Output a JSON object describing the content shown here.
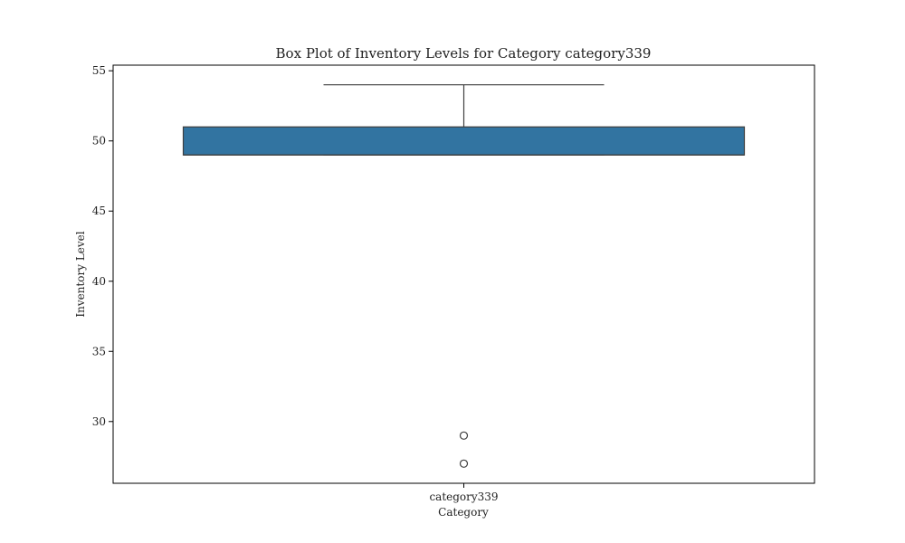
{
  "chart_data": {
    "type": "box",
    "title": "Box Plot of Inventory Levels for Category category339",
    "xlabel": "Category",
    "ylabel": "Inventory Level",
    "categories": [
      "category339"
    ],
    "boxes": [
      {
        "category": "category339",
        "whisker_low": 49,
        "q1": 49,
        "median": 49,
        "q3": 51,
        "whisker_high": 54,
        "outliers": [
          29,
          27
        ]
      }
    ],
    "ylim": [
      25.6,
      55.4
    ],
    "yticks": [
      30,
      35,
      40,
      45,
      50,
      55
    ],
    "grid": false,
    "colors": {
      "box": "#3274a1",
      "line": "#3f3f3f"
    }
  }
}
